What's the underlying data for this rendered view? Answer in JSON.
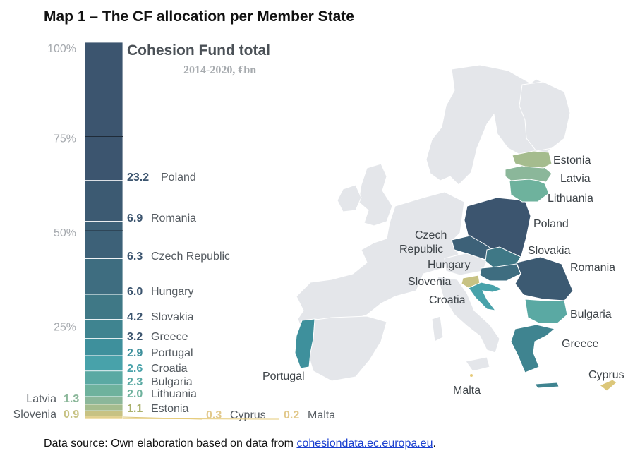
{
  "page": {
    "title": "Map 1 – The CF allocation per Member State",
    "source_prefix": "Data source: Own elaboration based on data from ",
    "source_link": "cohesiondata.ec.europa.eu",
    "source_suffix": "."
  },
  "chart_data": {
    "type": "stacked-bar",
    "title": "Cohesion Fund total",
    "subtitle": "2014-2020, €bn",
    "y_ticks": [
      "100%",
      "75%",
      "50%",
      "25%"
    ],
    "ylim": [
      0,
      100
    ],
    "series": [
      {
        "name": "Poland",
        "value": 23.2,
        "value_label": "23.2",
        "color": "#3c556f"
      },
      {
        "name": "Romania",
        "value": 6.9,
        "value_label": "6.9",
        "color": "#3c5a72"
      },
      {
        "name": "Czech Republic",
        "value": 6.3,
        "value_label": "6.3",
        "color": "#3d6178"
      },
      {
        "name": "Hungary",
        "value": 6.0,
        "value_label": "6.0",
        "color": "#3e6d80"
      },
      {
        "name": "Slovakia",
        "value": 4.2,
        "value_label": "4.2",
        "color": "#3f7886"
      },
      {
        "name": "Greece",
        "value": 3.2,
        "value_label": "3.2",
        "color": "#3f8490"
      },
      {
        "name": "Portugal",
        "value": 2.9,
        "value_label": "2.9",
        "color": "#3e909c"
      },
      {
        "name": "Croatia",
        "value": 2.6,
        "value_label": "2.6",
        "color": "#48a2aa"
      },
      {
        "name": "Bulgaria",
        "value": 2.3,
        "value_label": "2.3",
        "color": "#5aa9a3"
      },
      {
        "name": "Lithuania",
        "value": 2.0,
        "value_label": "2.0",
        "color": "#6eb29d"
      },
      {
        "name": "Latvia",
        "value": 1.3,
        "value_label": "1.3",
        "color": "#8bb79a"
      },
      {
        "name": "Estonia",
        "value": 1.1,
        "value_label": "1.1",
        "color": "#a5bc8e"
      },
      {
        "name": "Slovenia",
        "value": 0.9,
        "value_label": "0.9",
        "color": "#c7c283"
      },
      {
        "name": "Cyprus",
        "value": 0.3,
        "value_label": "0.3",
        "color": "#dcc77a"
      },
      {
        "name": "Malta",
        "value": 0.2,
        "value_label": "0.2",
        "color": "#e6cb7a"
      }
    ]
  },
  "map": {
    "labels": [
      "Estonia",
      "Latvia",
      "Lithuania",
      "Poland",
      "Czech",
      "Republic",
      "Slovakia",
      "Hungary",
      "Romania",
      "Slovenia",
      "Croatia",
      "Bulgaria",
      "Greece",
      "Portugal",
      "Cyprus",
      "Malta"
    ],
    "base_color": "#e4e6ea"
  }
}
